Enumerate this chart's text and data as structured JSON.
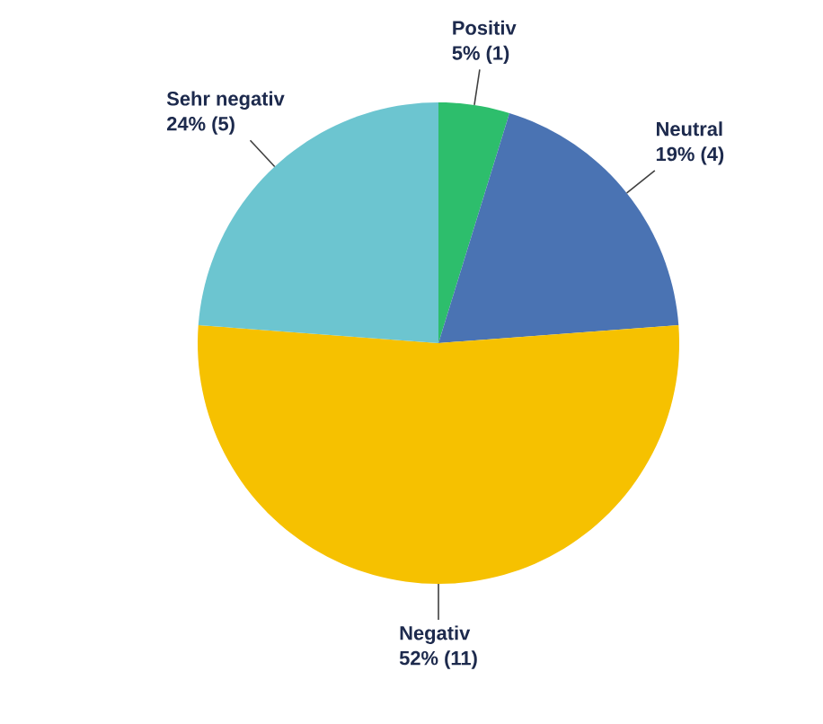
{
  "chart_data": {
    "type": "pie",
    "categories": [
      "Positiv",
      "Neutral",
      "Negativ",
      "Sehr negativ"
    ],
    "values": [
      1,
      4,
      11,
      5
    ],
    "value_labels": [
      "5% (1)",
      "19% (4)",
      "52% (11)",
      "24% (5)"
    ],
    "colors": [
      "#2dbe6c",
      "#4a73b3",
      "#f6c100",
      "#6cc5d0"
    ]
  }
}
